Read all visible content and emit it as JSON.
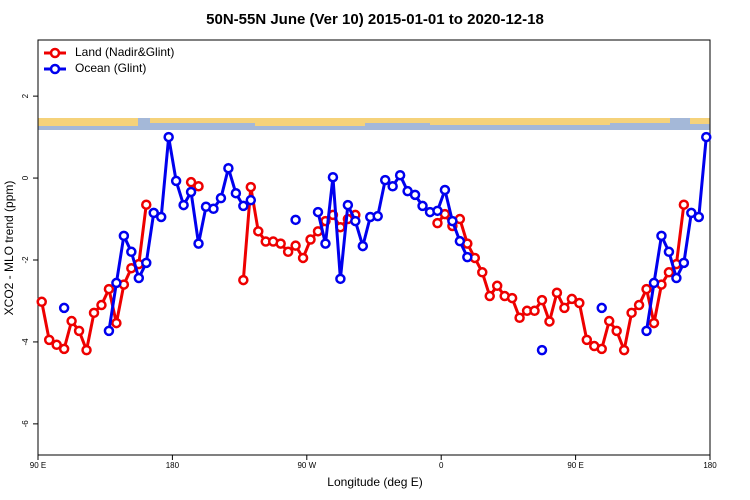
{
  "chart_data": {
    "type": "line",
    "title": "50N-55N June (Ver 10)   2015-01-01 to 2020-12-18",
    "xlabel": "Longitude (deg E)",
    "ylabel": "XCO2 - MLO trend (ppm)",
    "x": [
      92.5,
      97.5,
      102.5,
      107.5,
      112.5,
      117.5,
      122.5,
      127.5,
      132.5,
      137.5,
      142.5,
      147.5,
      152.5,
      157.5,
      162.5,
      167.5,
      172.5,
      177.5,
      182.5,
      187.5,
      192.5,
      197.5,
      202.5,
      207.5,
      212.5,
      217.5,
      222.5,
      227.5,
      232.5,
      237.5,
      242.5,
      247.5,
      252.5,
      257.5,
      262.5,
      267.5,
      272.5,
      277.5,
      282.5,
      287.5,
      292.5,
      297.5,
      302.5,
      307.5,
      312.5,
      317.5,
      322.5,
      327.5,
      332.5,
      337.5,
      342.5,
      347.5,
      352.5,
      357.5,
      362.5,
      367.5,
      372.5,
      377.5,
      382.5,
      387.5,
      392.5,
      397.5,
      402.5,
      407.5,
      412.5,
      417.5,
      422.5,
      427.5,
      432.5,
      437.5,
      442.5,
      447.5,
      452.5,
      457.5,
      462.5,
      467.5,
      472.5,
      477.5,
      482.5,
      487.5,
      492.5,
      497.5,
      502.5,
      507.5,
      512.5,
      517.5,
      522.5,
      527.5,
      532.5,
      537.5
    ],
    "series": [
      {
        "name": "Land (Nadir&Glint)",
        "color": "#ee0000",
        "values": [
          -3.02,
          -3.95,
          -4.07,
          -4.17,
          -3.49,
          -3.73,
          -4.2,
          -3.29,
          -3.1,
          -2.71,
          -3.54,
          -2.6,
          -2.2,
          -2.1,
          -0.65,
          null,
          null,
          null,
          null,
          null,
          -0.1,
          -0.2,
          null,
          null,
          null,
          null,
          null,
          -2.49,
          -0.22,
          -1.3,
          -1.55,
          -1.55,
          -1.6,
          -1.8,
          -1.65,
          -1.95,
          -1.5,
          -1.3,
          -1.05,
          -0.9,
          -1.2,
          -1.0,
          -0.9,
          null,
          null,
          null,
          null,
          null,
          null,
          null,
          null,
          null,
          null,
          -1.1,
          -0.88,
          -1.17,
          -1.0,
          -1.6,
          -1.95,
          -2.3,
          -2.88,
          -2.63,
          -2.88,
          -2.93,
          -3.41,
          -3.24,
          -3.24,
          -2.98,
          -3.5,
          -2.8,
          -3.17,
          -2.95,
          -3.05,
          -3.95,
          -4.1,
          -4.17,
          -3.49,
          -3.73,
          -4.2,
          -3.29,
          -3.1,
          -2.71,
          -3.54,
          -2.6,
          -2.3,
          -2.1,
          -0.65,
          null,
          null,
          null
        ]
      },
      {
        "name": "Ocean (Glint)",
        "color": "#0000ee",
        "values": [
          null,
          null,
          null,
          -3.17,
          null,
          null,
          null,
          null,
          null,
          -3.73,
          -2.56,
          -1.41,
          -1.8,
          -2.44,
          -2.07,
          -0.85,
          -0.95,
          1.0,
          -0.07,
          -0.66,
          -0.34,
          -1.6,
          -0.7,
          -0.75,
          -0.49,
          0.24,
          -0.37,
          -0.68,
          -0.54,
          null,
          null,
          null,
          null,
          null,
          -1.02,
          null,
          null,
          -0.83,
          -1.6,
          0.02,
          -2.46,
          -0.66,
          -1.05,
          -1.66,
          -0.95,
          -0.93,
          -0.05,
          -0.2,
          0.07,
          -0.32,
          -0.41,
          -0.68,
          -0.83,
          -0.8,
          -0.29,
          -1.05,
          -1.54,
          -1.93,
          null,
          null,
          null,
          null,
          null,
          null,
          null,
          null,
          null,
          -4.2,
          null,
          null,
          null,
          null,
          null,
          null,
          null,
          -3.17,
          null,
          null,
          null,
          null,
          null,
          -3.73,
          -2.56,
          -1.41,
          -1.8,
          -2.44,
          -2.07,
          -0.85,
          -0.95,
          1.0
        ]
      }
    ],
    "xlim": [
      90,
      540
    ],
    "xticks": [
      {
        "value": 90,
        "label": "90 E"
      },
      {
        "value": 180,
        "label": "180"
      },
      {
        "value": 270,
        "label": "90 W"
      },
      {
        "value": 360,
        "label": "0"
      },
      {
        "value": 450,
        "label": "90 E"
      },
      {
        "value": 540,
        "label": "180"
      }
    ],
    "ylim": [
      -6.76,
      3.37
    ],
    "yticks": [
      -6,
      -4,
      -2,
      0,
      2
    ],
    "legend": "top-left",
    "grid": false
  }
}
